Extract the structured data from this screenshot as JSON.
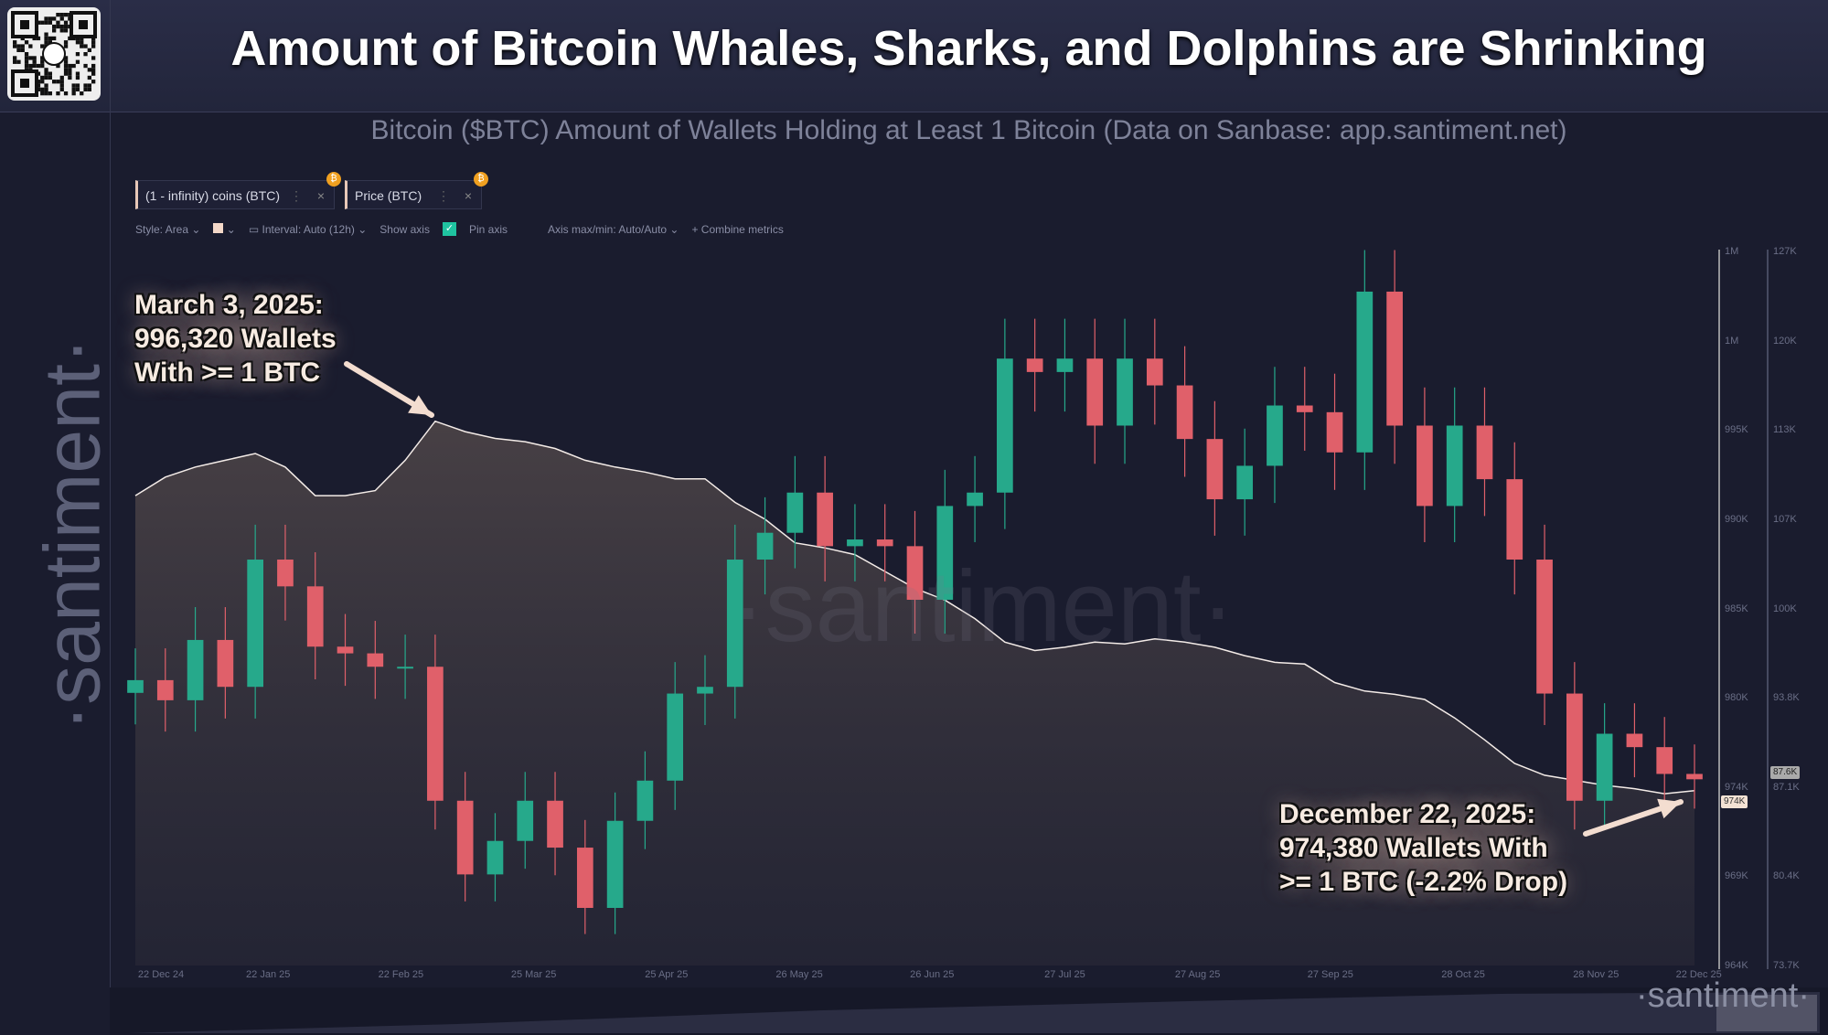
{
  "header": {
    "title": "Amount of Bitcoin Whales, Sharks, and Dolphins are Shrinking",
    "subtitle": "Bitcoin ($BTC) Amount of Wallets Holding at Least 1 Bitcoin (Data on Sanbase: app.santiment.net)",
    "brand": "·santiment·",
    "watermark": "·santiment·",
    "corner_brand": "·santiment·"
  },
  "tabs": [
    {
      "label": "(1 - infinity) coins (BTC)",
      "badge": "₿"
    },
    {
      "label": "Price (BTC)",
      "badge": "₿"
    }
  ],
  "toolbar": {
    "style": "Style: Area",
    "interval": "Interval: Auto (12h)",
    "show_axis": "Show axis",
    "pin_axis": "Pin axis",
    "axis_maxmin": "Axis max/min: Auto/Auto",
    "combine": "+ Combine metrics"
  },
  "annotations": {
    "first": [
      "March 3, 2025:",
      "996,320 Wallets",
      "With >= 1 BTC"
    ],
    "last": [
      "December 22, 2025:",
      "974,380 Wallets With",
      ">= 1 BTC (-2.2% Drop)"
    ]
  },
  "chart_data": {
    "type": "area+candlestick",
    "x_ticks": [
      "22 Dec 24",
      "22 Jan 25",
      "22 Feb 25",
      "25 Mar 25",
      "25 Apr 25",
      "26 May 25",
      "26 Jun 25",
      "27 Jul 25",
      "27 Aug 25",
      "27 Sep 25",
      "28 Oct 25",
      "28 Nov 25",
      "22 Dec 25"
    ],
    "x_tick_dates": [
      "2024-12-22",
      "2025-01-22",
      "2025-02-22",
      "2025-03-25",
      "2025-04-25",
      "2025-05-26",
      "2025-06-26",
      "2025-07-27",
      "2025-08-27",
      "2025-09-27",
      "2025-10-28",
      "2025-11-28",
      "2025-12-22"
    ],
    "wallet_axis": {
      "ticks": [
        "1M",
        "1M",
        "995K",
        "990K",
        "985K",
        "980K",
        "974K",
        "969K",
        "964K"
      ],
      "range": [
        964000,
        1006400
      ],
      "current_label": "974K"
    },
    "price_axis": {
      "ticks": [
        "127K",
        "120K",
        "113K",
        "107K",
        "100K",
        "93.8K",
        "87.1K",
        "80.4K",
        "73.7K"
      ],
      "range": [
        73700,
        127000
      ],
      "current_label": "87.6K"
    },
    "x": [
      "2024-12-22",
      "2024-12-29",
      "2025-01-05",
      "2025-01-12",
      "2025-01-19",
      "2025-01-26",
      "2025-02-02",
      "2025-02-09",
      "2025-02-16",
      "2025-02-23",
      "2025-03-02",
      "2025-03-09",
      "2025-03-16",
      "2025-03-23",
      "2025-03-30",
      "2025-04-06",
      "2025-04-13",
      "2025-04-20",
      "2025-04-27",
      "2025-05-04",
      "2025-05-11",
      "2025-05-18",
      "2025-05-25",
      "2025-06-01",
      "2025-06-08",
      "2025-06-15",
      "2025-06-22",
      "2025-06-29",
      "2025-07-06",
      "2025-07-13",
      "2025-07-20",
      "2025-07-27",
      "2025-08-03",
      "2025-08-10",
      "2025-08-17",
      "2025-08-24",
      "2025-08-31",
      "2025-09-07",
      "2025-09-14",
      "2025-09-21",
      "2025-09-28",
      "2025-10-05",
      "2025-10-12",
      "2025-10-19",
      "2025-10-26",
      "2025-11-02",
      "2025-11-09",
      "2025-11-16",
      "2025-11-23",
      "2025-11-30",
      "2025-12-07",
      "2025-12-14",
      "2025-12-21"
    ],
    "series": [
      {
        "name": "(1 - infinity) coins (BTC)",
        "style": "area",
        "color": "#f4ece8",
        "values": [
          991900,
          993000,
          993600,
          994000,
          994400,
          993600,
          991900,
          991900,
          992200,
          994000,
          996320,
          995700,
          995300,
          995100,
          994700,
          994000,
          993600,
          993300,
          992900,
          992900,
          991500,
          990500,
          989100,
          988800,
          988400,
          987400,
          986400,
          985700,
          984600,
          983200,
          982700,
          982900,
          983200,
          983100,
          983400,
          983200,
          982900,
          982400,
          982000,
          981900,
          980800,
          980300,
          980100,
          979800,
          978700,
          977400,
          976000,
          975300,
          975000,
          974700,
          974500,
          974200,
          974380
        ]
      },
      {
        "name": "Price (BTC)",
        "style": "candles",
        "up_color": "#26a98b",
        "down_color": "#e0606a",
        "values": [
          95000,
          93500,
          98000,
          94500,
          104000,
          102000,
          97500,
          97000,
          96000,
          96000,
          86000,
          80500,
          83000,
          86000,
          82500,
          78000,
          84500,
          87500,
          94000,
          94500,
          104000,
          106000,
          109000,
          105000,
          105500,
          105000,
          101000,
          108000,
          109000,
          119000,
          118000,
          119000,
          114000,
          119000,
          117000,
          113000,
          108500,
          111000,
          115500,
          115000,
          112000,
          124000,
          114000,
          108000,
          114000,
          110000,
          104000,
          94000,
          86000,
          91000,
          90000,
          88000,
          87600
        ]
      }
    ]
  }
}
